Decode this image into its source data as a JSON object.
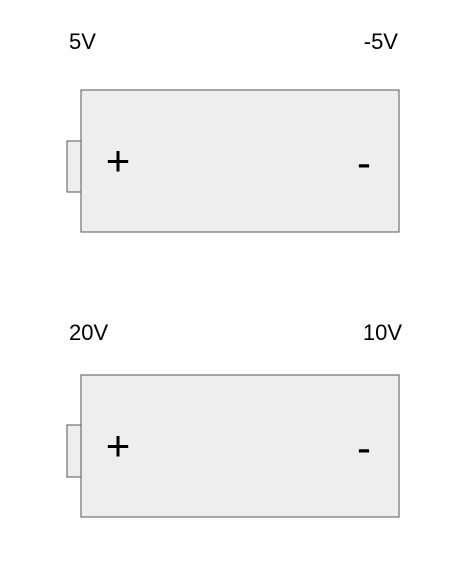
{
  "batteries": [
    {
      "left_voltage": "5V",
      "right_voltage": "-5V",
      "positive_sign": "+",
      "negative_sign": "-"
    },
    {
      "left_voltage": "20V",
      "right_voltage": "10V",
      "positive_sign": "+",
      "negative_sign": "-"
    }
  ],
  "colors": {
    "body_fill": "#eeeeee",
    "outline": "#555555",
    "text": "#000000"
  }
}
